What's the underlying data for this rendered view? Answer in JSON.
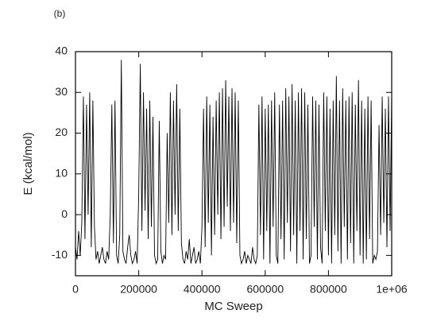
{
  "chart_data": {
    "type": "line",
    "panel_label": "(b)",
    "x_label": "MC Sweep",
    "y_label": "E (kcal/mol)",
    "color": "#000000",
    "xlim": [
      0,
      1000000
    ],
    "ylim": [
      -15,
      40
    ],
    "xticks": [
      0,
      200000,
      400000,
      600000,
      800000,
      {
        "value": 1000000,
        "label": "1e+06"
      }
    ],
    "yticks": [
      -10,
      0,
      10,
      20,
      30,
      40
    ],
    "x": [
      0,
      5000,
      10000,
      15000,
      20000,
      25000,
      30000,
      35000,
      40000,
      45000,
      50000,
      55000,
      60000,
      65000,
      70000,
      75000,
      80000,
      85000,
      90000,
      95000,
      100000,
      105000,
      110000,
      115000,
      120000,
      125000,
      130000,
      135000,
      140000,
      145000,
      150000,
      155000,
      160000,
      165000,
      170000,
      175000,
      180000,
      185000,
      190000,
      195000,
      200000,
      205000,
      210000,
      215000,
      220000,
      225000,
      230000,
      235000,
      240000,
      245000,
      250000,
      255000,
      260000,
      265000,
      270000,
      275000,
      280000,
      285000,
      290000,
      295000,
      300000,
      305000,
      310000,
      315000,
      320000,
      325000,
      330000,
      335000,
      340000,
      345000,
      350000,
      355000,
      360000,
      365000,
      370000,
      375000,
      380000,
      385000,
      390000,
      395000,
      400000,
      405000,
      410000,
      415000,
      420000,
      425000,
      430000,
      435000,
      440000,
      445000,
      450000,
      455000,
      460000,
      465000,
      470000,
      475000,
      480000,
      485000,
      490000,
      495000,
      500000,
      505000,
      510000,
      515000,
      520000,
      525000,
      530000,
      535000,
      540000,
      545000,
      550000,
      555000,
      560000,
      565000,
      570000,
      575000,
      580000,
      585000,
      590000,
      595000,
      600000,
      605000,
      610000,
      615000,
      620000,
      625000,
      630000,
      635000,
      640000,
      645000,
      650000,
      655000,
      660000,
      665000,
      670000,
      675000,
      680000,
      685000,
      690000,
      695000,
      700000,
      705000,
      710000,
      715000,
      720000,
      725000,
      730000,
      735000,
      740000,
      745000,
      750000,
      755000,
      760000,
      765000,
      770000,
      775000,
      780000,
      785000,
      790000,
      795000,
      800000,
      805000,
      810000,
      815000,
      820000,
      825000,
      830000,
      835000,
      840000,
      845000,
      850000,
      855000,
      860000,
      865000,
      870000,
      875000,
      880000,
      885000,
      890000,
      895000,
      900000,
      905000,
      910000,
      915000,
      920000,
      925000,
      930000,
      935000,
      940000,
      945000,
      950000,
      955000,
      960000,
      965000,
      970000,
      975000,
      980000,
      985000,
      990000,
      995000,
      1000000
    ],
    "values": [
      -8,
      -11,
      -4,
      -10,
      -2,
      29,
      -6,
      27,
      0,
      30,
      -8,
      28,
      -3,
      -11,
      -9,
      -12,
      -10,
      -8,
      -11,
      -12,
      -9,
      -11,
      0,
      27,
      -7,
      28,
      -10,
      -12,
      -5,
      38,
      -9,
      -11,
      -12,
      -8,
      -5,
      -10,
      -12,
      -11,
      -9,
      -12,
      5,
      37,
      -4,
      30,
      1,
      26,
      -6,
      28,
      -3,
      24,
      -10,
      -12,
      -11,
      23,
      -9,
      -12,
      -10,
      -11,
      20,
      -2,
      30,
      -5,
      28,
      0,
      32,
      -4,
      26,
      -7,
      -11,
      -12,
      -9,
      -11,
      -6,
      -12,
      -10,
      -8,
      -12,
      -11,
      -9,
      -12,
      -3,
      26,
      -8,
      29,
      -2,
      27,
      -10,
      24,
      -5,
      28,
      0,
      30,
      -6,
      31,
      -3,
      33,
      2,
      29,
      -4,
      31,
      -2,
      30,
      -7,
      28,
      -10,
      -12,
      -11,
      -9,
      -12,
      -10,
      -11,
      -12,
      -8,
      -11,
      -12,
      -10,
      27,
      -5,
      29,
      -11,
      26,
      -4,
      27,
      -12,
      28,
      -3,
      30,
      -10,
      -12,
      27,
      -6,
      28,
      -11,
      31,
      -2,
      29,
      -9,
      32,
      -5,
      28,
      -12,
      30,
      -4,
      31,
      -11,
      30,
      -6,
      27,
      -12,
      -10,
      29,
      -3,
      28,
      -11,
      27,
      -8,
      -12,
      30,
      -4,
      29,
      -10,
      26,
      -12,
      28,
      -5,
      34,
      -9,
      28,
      -12,
      31,
      -3,
      28,
      -11,
      29,
      -7,
      30,
      -12,
      27,
      -4,
      33,
      -10,
      28,
      -12,
      26,
      -11,
      29,
      -6,
      28,
      -12,
      -10,
      -11,
      -9,
      22,
      -5,
      29,
      -2,
      26,
      -8,
      29,
      -4,
      30
    ]
  }
}
